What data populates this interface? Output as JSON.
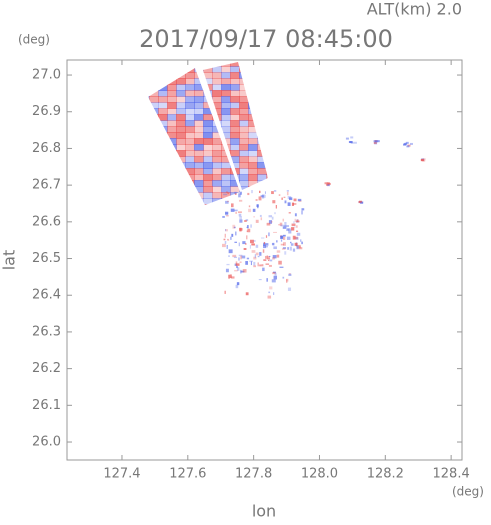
{
  "chart_data": {
    "type": "radar-field",
    "title": "2017/09/17 08:45:00",
    "subtitle": "ALT(km) 2.0",
    "x_label": "lon",
    "y_label": "lat",
    "x_unit": "(deg)",
    "y_unit": "(deg)",
    "xlim": [
      127.233,
      128.433
    ],
    "ylim": [
      25.951,
      27.041
    ],
    "xticks": [
      127.4,
      127.6,
      127.8,
      {
        "value": 128,
        "label": "128.0"
      },
      128.2,
      128.4
    ],
    "yticks": [
      {
        "value": 26,
        "label": "26.0"
      },
      26.1,
      26.2,
      26.3,
      26.4,
      26.5,
      26.6,
      26.7,
      26.8,
      26.9,
      {
        "value": 27,
        "label": "27.0"
      }
    ]
  }
}
